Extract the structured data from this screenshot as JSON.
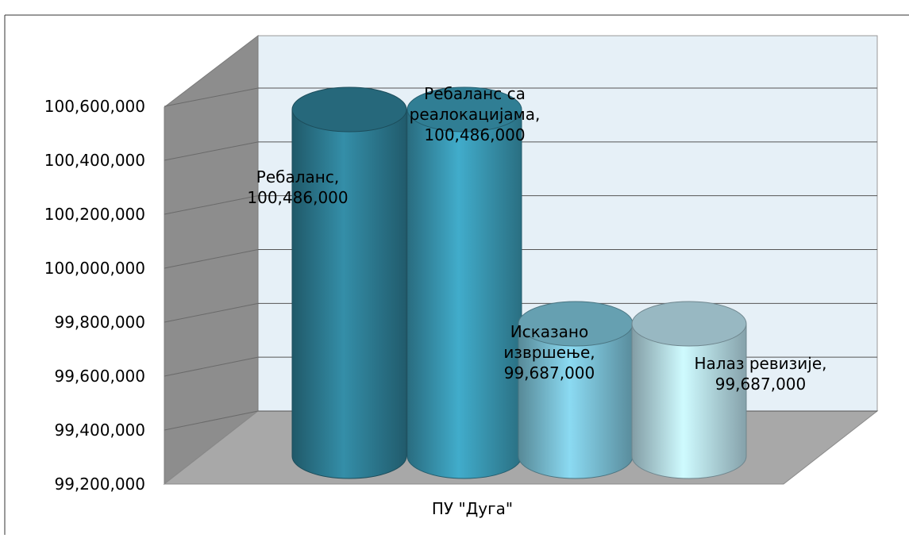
{
  "header": {
    "caption_fragment": ""
  },
  "chart_data": {
    "type": "bar",
    "style": "3d-cylinder",
    "title": "",
    "xlabel": "",
    "ylabel": "",
    "category": "ПУ \"Дуга\"",
    "ylim": [
      99200000,
      100600000
    ],
    "yticks": [
      99200000,
      99400000,
      99600000,
      99800000,
      100000000,
      100200000,
      100400000,
      100600000
    ],
    "ytick_labels": [
      "99,200,000",
      "99,400,000",
      "99,600,000",
      "99,800,000",
      "100,000,000",
      "100,200,000",
      "100,400,000",
      "100,600,000"
    ],
    "grid": true,
    "legend": "none",
    "series": [
      {
        "name": "Ребаланс",
        "value": 100486000,
        "label_lines": [
          "Ребаланс,",
          "100,486,000"
        ],
        "color": "#2e7f96"
      },
      {
        "name": "Ребаланс са реалокацијама",
        "value": 100486000,
        "label_lines": [
          "Ребаланс са",
          "реалокацијама,",
          "100,486,000"
        ],
        "color": "#3a9ab5"
      },
      {
        "name": "Исказано извршење",
        "value": 99687000,
        "label_lines": [
          "Исказано",
          "извршење,",
          "99,687,000"
        ],
        "color": "#7cc3d8"
      },
      {
        "name": "Налаз ревизије",
        "value": 99687000,
        "label_lines": [
          "Налаз ревизије,",
          "99,687,000"
        ],
        "color": "#b9e0ec"
      }
    ]
  }
}
